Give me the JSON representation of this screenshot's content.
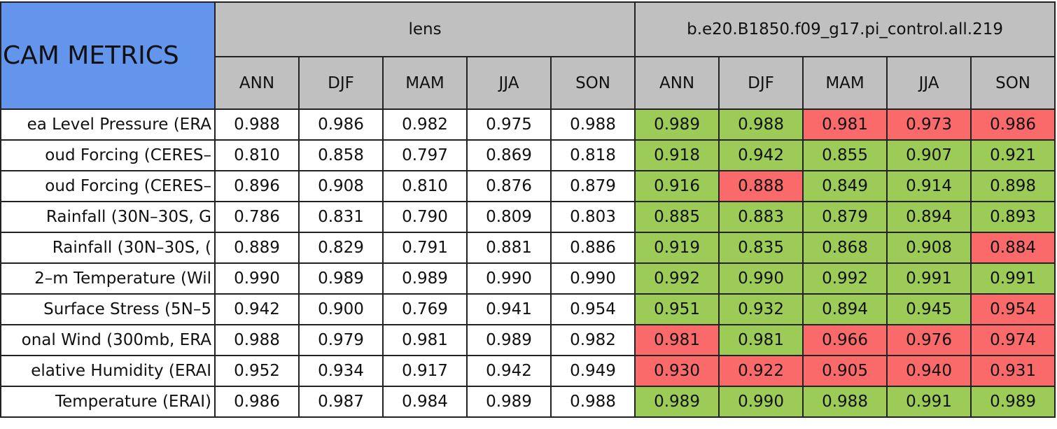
{
  "header": {
    "title": "CAM METRICS",
    "groups": [
      "lens",
      "b.e20.B1850.f09_g17.pi_control.all.219"
    ],
    "seasons": [
      "ANN",
      "DJF",
      "MAM",
      "JJA",
      "SON"
    ]
  },
  "table": {
    "rows": [
      {
        "label": "ea Level Pressure (ERA",
        "lens": [
          "0.988",
          "0.986",
          "0.982",
          "0.975",
          "0.988"
        ],
        "pi": [
          "0.989",
          "0.988",
          "0.981",
          "0.973",
          "0.986"
        ],
        "pi_colors": [
          "#9ccb57",
          "#9ccb57",
          "#fa6a6a",
          "#fa6a6a",
          "#fa6a6a"
        ]
      },
      {
        "label": "oud Forcing (CERES–",
        "lens": [
          "0.810",
          "0.858",
          "0.797",
          "0.869",
          "0.818"
        ],
        "pi": [
          "0.918",
          "0.942",
          "0.855",
          "0.907",
          "0.921"
        ],
        "pi_colors": [
          "#9ccb57",
          "#9ccb57",
          "#9ccb57",
          "#9ccb57",
          "#9ccb57"
        ]
      },
      {
        "label": "oud Forcing (CERES–",
        "lens": [
          "0.896",
          "0.908",
          "0.810",
          "0.876",
          "0.879"
        ],
        "pi": [
          "0.916",
          "0.888",
          "0.849",
          "0.914",
          "0.898"
        ],
        "pi_colors": [
          "#9ccb57",
          "#fa6a6a",
          "#9ccb57",
          "#9ccb57",
          "#9ccb57"
        ]
      },
      {
        "label": "Rainfall (30N–30S, G",
        "lens": [
          "0.786",
          "0.831",
          "0.790",
          "0.809",
          "0.803"
        ],
        "pi": [
          "0.885",
          "0.883",
          "0.879",
          "0.894",
          "0.893"
        ],
        "pi_colors": [
          "#9ccb57",
          "#9ccb57",
          "#9ccb57",
          "#9ccb57",
          "#9ccb57"
        ]
      },
      {
        "label": "Rainfall (30N–30S, (",
        "lens": [
          "0.889",
          "0.829",
          "0.791",
          "0.881",
          "0.886"
        ],
        "pi": [
          "0.919",
          "0.835",
          "0.868",
          "0.908",
          "0.884"
        ],
        "pi_colors": [
          "#9ccb57",
          "#9ccb57",
          "#9ccb57",
          "#9ccb57",
          "#fa6a6a"
        ]
      },
      {
        "label": "2–m Temperature (Wil",
        "lens": [
          "0.990",
          "0.989",
          "0.989",
          "0.990",
          "0.990"
        ],
        "pi": [
          "0.992",
          "0.990",
          "0.992",
          "0.991",
          "0.991"
        ],
        "pi_colors": [
          "#9ccb57",
          "#9ccb57",
          "#9ccb57",
          "#9ccb57",
          "#9ccb57"
        ]
      },
      {
        "label": "Surface Stress (5N–5",
        "lens": [
          "0.942",
          "0.900",
          "0.769",
          "0.941",
          "0.954"
        ],
        "pi": [
          "0.951",
          "0.932",
          "0.894",
          "0.945",
          "0.954"
        ],
        "pi_colors": [
          "#9ccb57",
          "#9ccb57",
          "#9ccb57",
          "#9ccb57",
          "#fa6a6a"
        ]
      },
      {
        "label": "onal Wind (300mb, ERA",
        "lens": [
          "0.988",
          "0.979",
          "0.981",
          "0.989",
          "0.982"
        ],
        "pi": [
          "0.981",
          "0.981",
          "0.966",
          "0.976",
          "0.974"
        ],
        "pi_colors": [
          "#fa6a6a",
          "#9ccb57",
          "#fa6a6a",
          "#fa6a6a",
          "#fa6a6a"
        ]
      },
      {
        "label": "elative Humidity (ERAI",
        "lens": [
          "0.952",
          "0.934",
          "0.917",
          "0.942",
          "0.949"
        ],
        "pi": [
          "0.930",
          "0.922",
          "0.905",
          "0.940",
          "0.931"
        ],
        "pi_colors": [
          "#fa6a6a",
          "#fa6a6a",
          "#fa6a6a",
          "#fa6a6a",
          "#fa6a6a"
        ]
      },
      {
        "label": "Temperature (ERAI)",
        "lens": [
          "0.986",
          "0.987",
          "0.984",
          "0.989",
          "0.988"
        ],
        "pi": [
          "0.989",
          "0.990",
          "0.988",
          "0.991",
          "0.989"
        ],
        "pi_colors": [
          "#9ccb57",
          "#9ccb57",
          "#9ccb57",
          "#9ccb57",
          "#9ccb57"
        ]
      }
    ]
  }
}
